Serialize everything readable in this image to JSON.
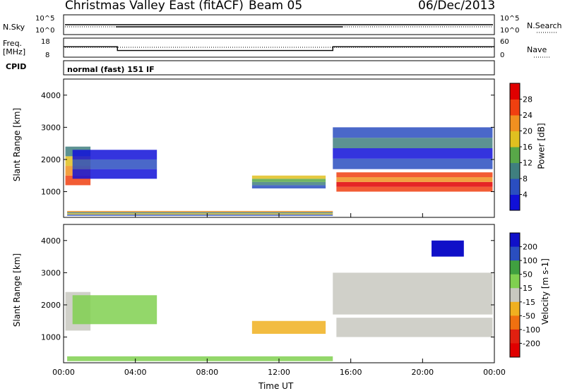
{
  "header": {
    "station": "Christmas Valley East (fitACF)",
    "beam": "Beam 05",
    "date": "06/Dec/2013"
  },
  "top_panels": {
    "nsky_label": "N.Sky",
    "nsearch_label": "N.Search",
    "nsky_ticks": [
      "10^5",
      "10^0"
    ],
    "nsearch_ticks": [
      "10^5",
      "10^0"
    ],
    "freq_label": "Freq.",
    "freq_unit": "[MHz]",
    "freq_ticks": [
      "18",
      "8"
    ],
    "nave_label": "Nave",
    "nave_ticks": [
      "60",
      "0"
    ],
    "cpid_label": "CPID",
    "cpid_value": "normal (fast) 151 IF"
  },
  "colors": {
    "power": [
      "#1010d8",
      "#2a4ec0",
      "#3f7f7f",
      "#58a848",
      "#e0c020",
      "#f09020",
      "#f04010",
      "#e00000"
    ],
    "velocity": [
      "#1010c8",
      "#2a4ec0",
      "#40a040",
      "#80d050",
      "#c8c8c0",
      "#f0b020",
      "#f07010",
      "#e02010",
      "#e00000"
    ]
  },
  "chart_data": [
    {
      "type": "heatmap",
      "name": "power",
      "ylabel": "Slant Range [km]",
      "yticks": [
        1000,
        2000,
        3000,
        4000
      ],
      "ylim": [
        200,
        4500
      ],
      "xlim": [
        0,
        24
      ],
      "colorbar_label": "Power [dB]",
      "colorbar_ticks": [
        4,
        8,
        12,
        16,
        20,
        24,
        28
      ],
      "colorbar_range": [
        0,
        32
      ]
    },
    {
      "type": "heatmap",
      "name": "velocity",
      "ylabel": "Slant Range [km]",
      "yticks": [
        1000,
        2000,
        3000,
        4000
      ],
      "ylim": [
        200,
        4500
      ],
      "xlim": [
        0,
        24
      ],
      "xticks": [
        "00:00",
        "04:00",
        "08:00",
        "12:00",
        "16:00",
        "20:00",
        "00:00"
      ],
      "xlabel": "Time UT",
      "colorbar_label": "Velocity [m s-1]",
      "colorbar_ticks": [
        200,
        100,
        50,
        15,
        -15,
        -50,
        -100,
        -200
      ]
    },
    {
      "type": "line",
      "name": "frequency",
      "x": [
        0,
        3,
        3,
        15,
        15,
        24
      ],
      "y": [
        13.5,
        13.5,
        11.5,
        11.5,
        13.5,
        13.5
      ]
    }
  ]
}
